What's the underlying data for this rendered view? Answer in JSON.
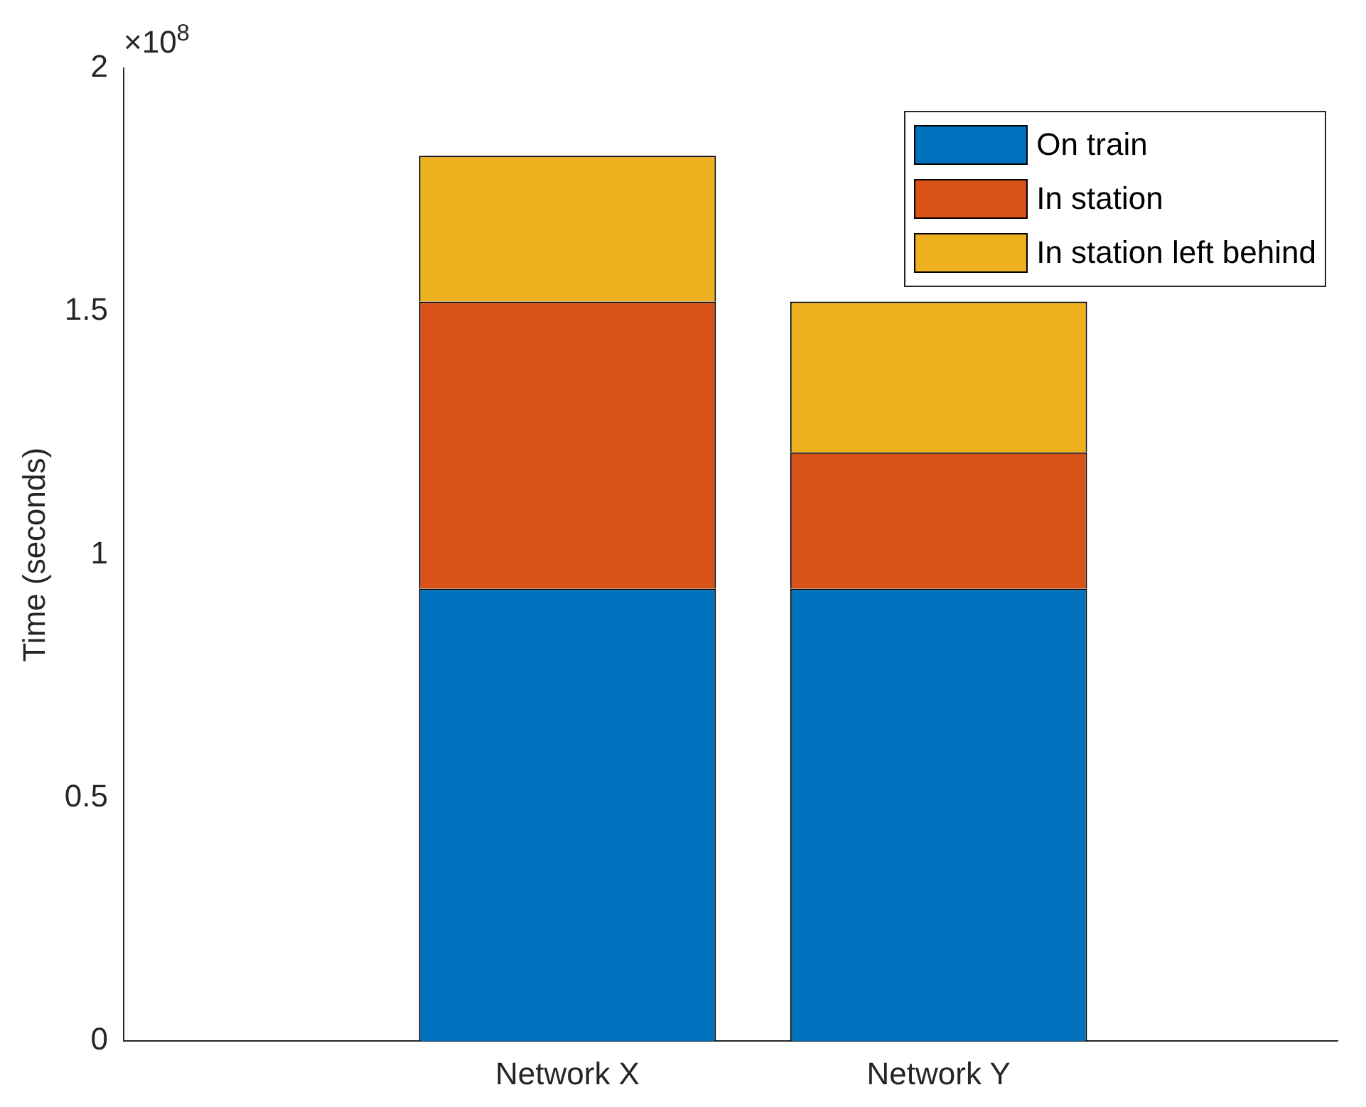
{
  "chart_data": {
    "type": "bar",
    "ylabel": "Time (seconds)",
    "categories": [
      "Network X",
      "Network Y"
    ],
    "stacked": true,
    "series": [
      {
        "name": "On train",
        "color": "#0072bd",
        "values": [
          0.93,
          0.93
        ]
      },
      {
        "name": "In station",
        "color": "#d95319",
        "values": [
          0.59,
          0.28
        ]
      },
      {
        "name": "In station left behind",
        "color": "#edb120",
        "values": [
          0.3,
          0.31
        ]
      }
    ],
    "ylim": [
      0,
      2
    ],
    "yticks": [
      0,
      0.5,
      1,
      1.5,
      2
    ],
    "annotations": [
      "×10$^{8}$"
    ],
    "grid": false,
    "legend": "top right"
  }
}
